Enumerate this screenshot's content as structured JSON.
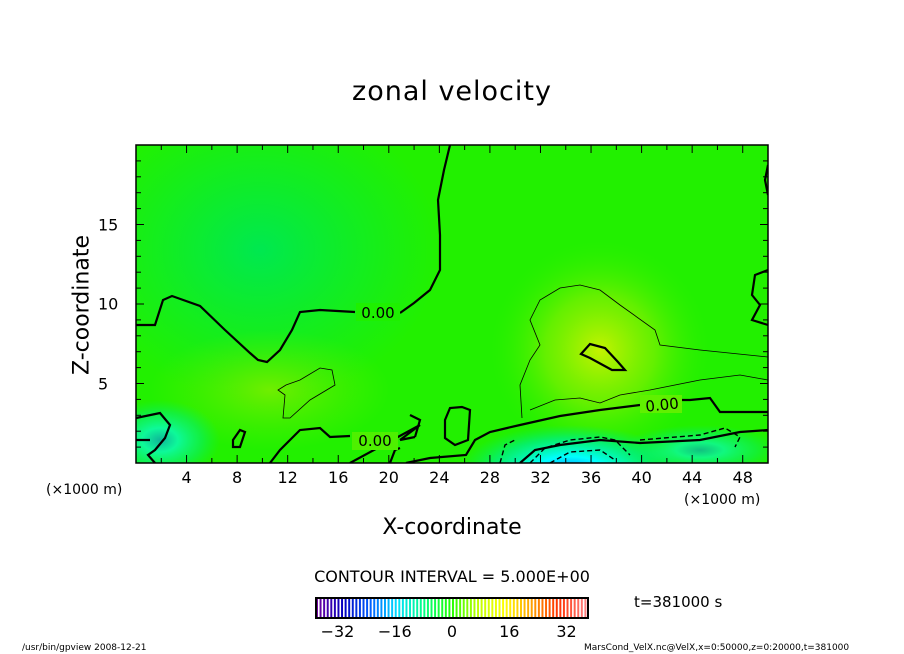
{
  "chart_data": {
    "type": "heatmap",
    "title": "zonal velocity",
    "xlabel": "X-coordinate",
    "ylabel": "Z-coordinate",
    "x_unit_label": "(×1000 m)",
    "xlim": [
      0,
      50
    ],
    "ylim": [
      0,
      20
    ],
    "xticks": [
      "4",
      "8",
      "12",
      "16",
      "20",
      "24",
      "28",
      "32",
      "36",
      "40",
      "44",
      "48"
    ],
    "xtick_values": [
      4,
      8,
      12,
      16,
      20,
      24,
      28,
      32,
      36,
      40,
      44,
      48
    ],
    "yticks": [
      "5",
      "10",
      "15"
    ],
    "ytick_values": [
      5,
      10,
      15
    ],
    "contour_interval_text": "CONTOUR INTERVAL = 5.000E+00",
    "contour_labels": [
      "0.00",
      "0.00",
      "0.00"
    ],
    "colorbar": {
      "ticks": [
        "−32",
        "−16",
        "0",
        "16",
        "32"
      ],
      "tick_values": [
        -32,
        -16,
        0,
        16,
        32
      ],
      "range": [
        -38,
        38
      ],
      "colors": [
        "#7000a0",
        "#0000c0",
        "#0060ff",
        "#00e0ff",
        "#00ff80",
        "#20ff00",
        "#c0ff00",
        "#ffff00",
        "#ffa000",
        "#ff3000",
        "#ff8080"
      ]
    },
    "time_label": "t=381000 s"
  },
  "footer": {
    "left": "/usr/bin/gpview  2008-12-21",
    "right": "MarsCond_VelX.nc@VelX,x=0:50000,z=0:20000,t=381000"
  }
}
